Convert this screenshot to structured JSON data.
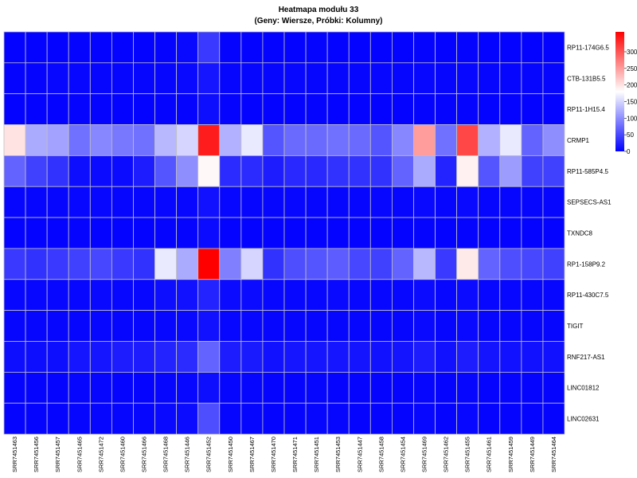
{
  "chart_data": {
    "type": "heatmap",
    "title": "Heatmapa modułu 33",
    "subtitle": "(Geny: Wiersze, Próbki: Kolumny)",
    "rows": [
      "RP11-174G6.5",
      "CTB-131B5.5",
      "RP11-1H15.4",
      "CRMP1",
      "RP11-585P4.5",
      "SEPSECS-AS1",
      "TXNDC8",
      "RP1-158P9.2",
      "RP11-430C7.5",
      "TIGIT",
      "RNF217-AS1",
      "LINC01812",
      "LINC02631"
    ],
    "columns": [
      "SRR7451463",
      "SRR7451456",
      "SRR7451457",
      "SRR7451465",
      "SRR7451472",
      "SRR7451460",
      "SRR7451466",
      "SRR7451468",
      "SRR7451446",
      "SRR7451452",
      "SRR7451450",
      "SRR7451467",
      "SRR7451470",
      "SRR7451471",
      "SRR7451451",
      "SRR7451453",
      "SRR7451447",
      "SRR7451458",
      "SRR7451454",
      "SRR7451469",
      "SRR7451462",
      "SRR7451455",
      "SRR7451461",
      "SRR7451459",
      "SRR7451449",
      "SRR7451464"
    ],
    "values": [
      [
        2,
        2,
        2,
        3,
        2,
        2,
        2,
        3,
        6,
        40,
        3,
        2,
        2,
        2,
        3,
        2,
        2,
        2,
        2,
        3,
        2,
        3,
        2,
        2,
        2,
        2
      ],
      [
        3,
        3,
        5,
        5,
        4,
        4,
        4,
        4,
        6,
        15,
        4,
        4,
        4,
        5,
        4,
        4,
        4,
        5,
        4,
        5,
        4,
        5,
        4,
        4,
        4,
        4
      ],
      [
        2,
        2,
        2,
        3,
        3,
        2,
        2,
        3,
        3,
        10,
        3,
        2,
        2,
        2,
        3,
        2,
        2,
        2,
        2,
        3,
        3,
        3,
        2,
        2,
        2,
        2
      ],
      [
        200,
        120,
        115,
        80,
        95,
        85,
        80,
        130,
        150,
        340,
        125,
        165,
        60,
        75,
        75,
        80,
        75,
        60,
        95,
        250,
        80,
        310,
        125,
        165,
        70,
        100
      ],
      [
        70,
        45,
        35,
        10,
        8,
        8,
        20,
        60,
        100,
        185,
        30,
        30,
        20,
        28,
        28,
        35,
        35,
        35,
        70,
        120,
        25,
        190,
        60,
        110,
        45,
        45
      ],
      [
        4,
        4,
        4,
        5,
        5,
        4,
        4,
        5,
        5,
        12,
        5,
        4,
        4,
        5,
        4,
        4,
        4,
        5,
        4,
        6,
        4,
        6,
        4,
        4,
        4,
        4
      ],
      [
        2,
        2,
        2,
        3,
        2,
        2,
        2,
        3,
        3,
        8,
        2,
        2,
        2,
        2,
        2,
        2,
        2,
        2,
        2,
        3,
        2,
        3,
        2,
        2,
        2,
        2
      ],
      [
        40,
        35,
        40,
        45,
        50,
        40,
        35,
        165,
        120,
        360,
        90,
        150,
        35,
        55,
        60,
        65,
        50,
        45,
        70,
        130,
        40,
        195,
        70,
        55,
        50,
        45
      ],
      [
        5,
        5,
        5,
        5,
        6,
        5,
        5,
        10,
        12,
        25,
        8,
        8,
        5,
        5,
        5,
        6,
        5,
        5,
        5,
        8,
        5,
        8,
        5,
        5,
        5,
        5
      ],
      [
        4,
        4,
        4,
        4,
        5,
        4,
        4,
        5,
        6,
        12,
        5,
        5,
        4,
        4,
        4,
        4,
        4,
        4,
        4,
        6,
        4,
        6,
        4,
        4,
        4,
        4
      ],
      [
        10,
        10,
        10,
        15,
        15,
        20,
        20,
        25,
        30,
        70,
        20,
        18,
        12,
        15,
        15,
        15,
        14,
        12,
        14,
        20,
        12,
        20,
        14,
        12,
        12,
        12
      ],
      [
        3,
        3,
        3,
        4,
        4,
        3,
        3,
        4,
        5,
        10,
        4,
        4,
        3,
        3,
        4,
        3,
        3,
        3,
        3,
        4,
        3,
        4,
        3,
        3,
        3,
        3
      ],
      [
        3,
        3,
        3,
        4,
        4,
        4,
        4,
        6,
        8,
        55,
        4,
        4,
        3,
        3,
        4,
        4,
        3,
        3,
        3,
        5,
        3,
        5,
        3,
        3,
        3,
        3
      ]
    ],
    "color_scale": {
      "low": "#0000ff",
      "mid": "#ffffff",
      "high": "#ff0000",
      "min": 0,
      "mid_value": 180,
      "max": 360
    },
    "legend_ticks": [
      0,
      50,
      100,
      150,
      200,
      250,
      300
    ],
    "legend_placement": "top-right",
    "grid": true,
    "grid_color": "#c0c0c0"
  }
}
